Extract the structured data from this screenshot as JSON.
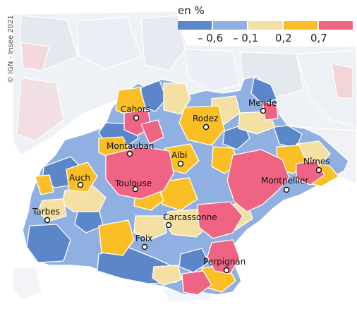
{
  "copyright": "© IGN - Insee 2021",
  "legend": {
    "title": "en %",
    "classes": [
      {
        "color": "#5b86c9"
      },
      {
        "color": "#8fb0e0"
      },
      {
        "color": "#f4e0a2"
      },
      {
        "color": "#fbbf26"
      },
      {
        "color": "#ef6483"
      }
    ],
    "ticks": [
      "– 0,6",
      "– 0,1",
      "0,2",
      "0,7"
    ]
  },
  "cities": [
    {
      "name": "Cahors"
    },
    {
      "name": "Mende"
    },
    {
      "name": "Rodez"
    },
    {
      "name": "Montauban"
    },
    {
      "name": "Albi"
    },
    {
      "name": "Nîmes"
    },
    {
      "name": "Auch"
    },
    {
      "name": "Toulouse"
    },
    {
      "name": "Montpellier"
    },
    {
      "name": "Tarbes"
    },
    {
      "name": "Carcassonne"
    },
    {
      "name": "Foix"
    },
    {
      "name": "Perpignan"
    }
  ]
}
